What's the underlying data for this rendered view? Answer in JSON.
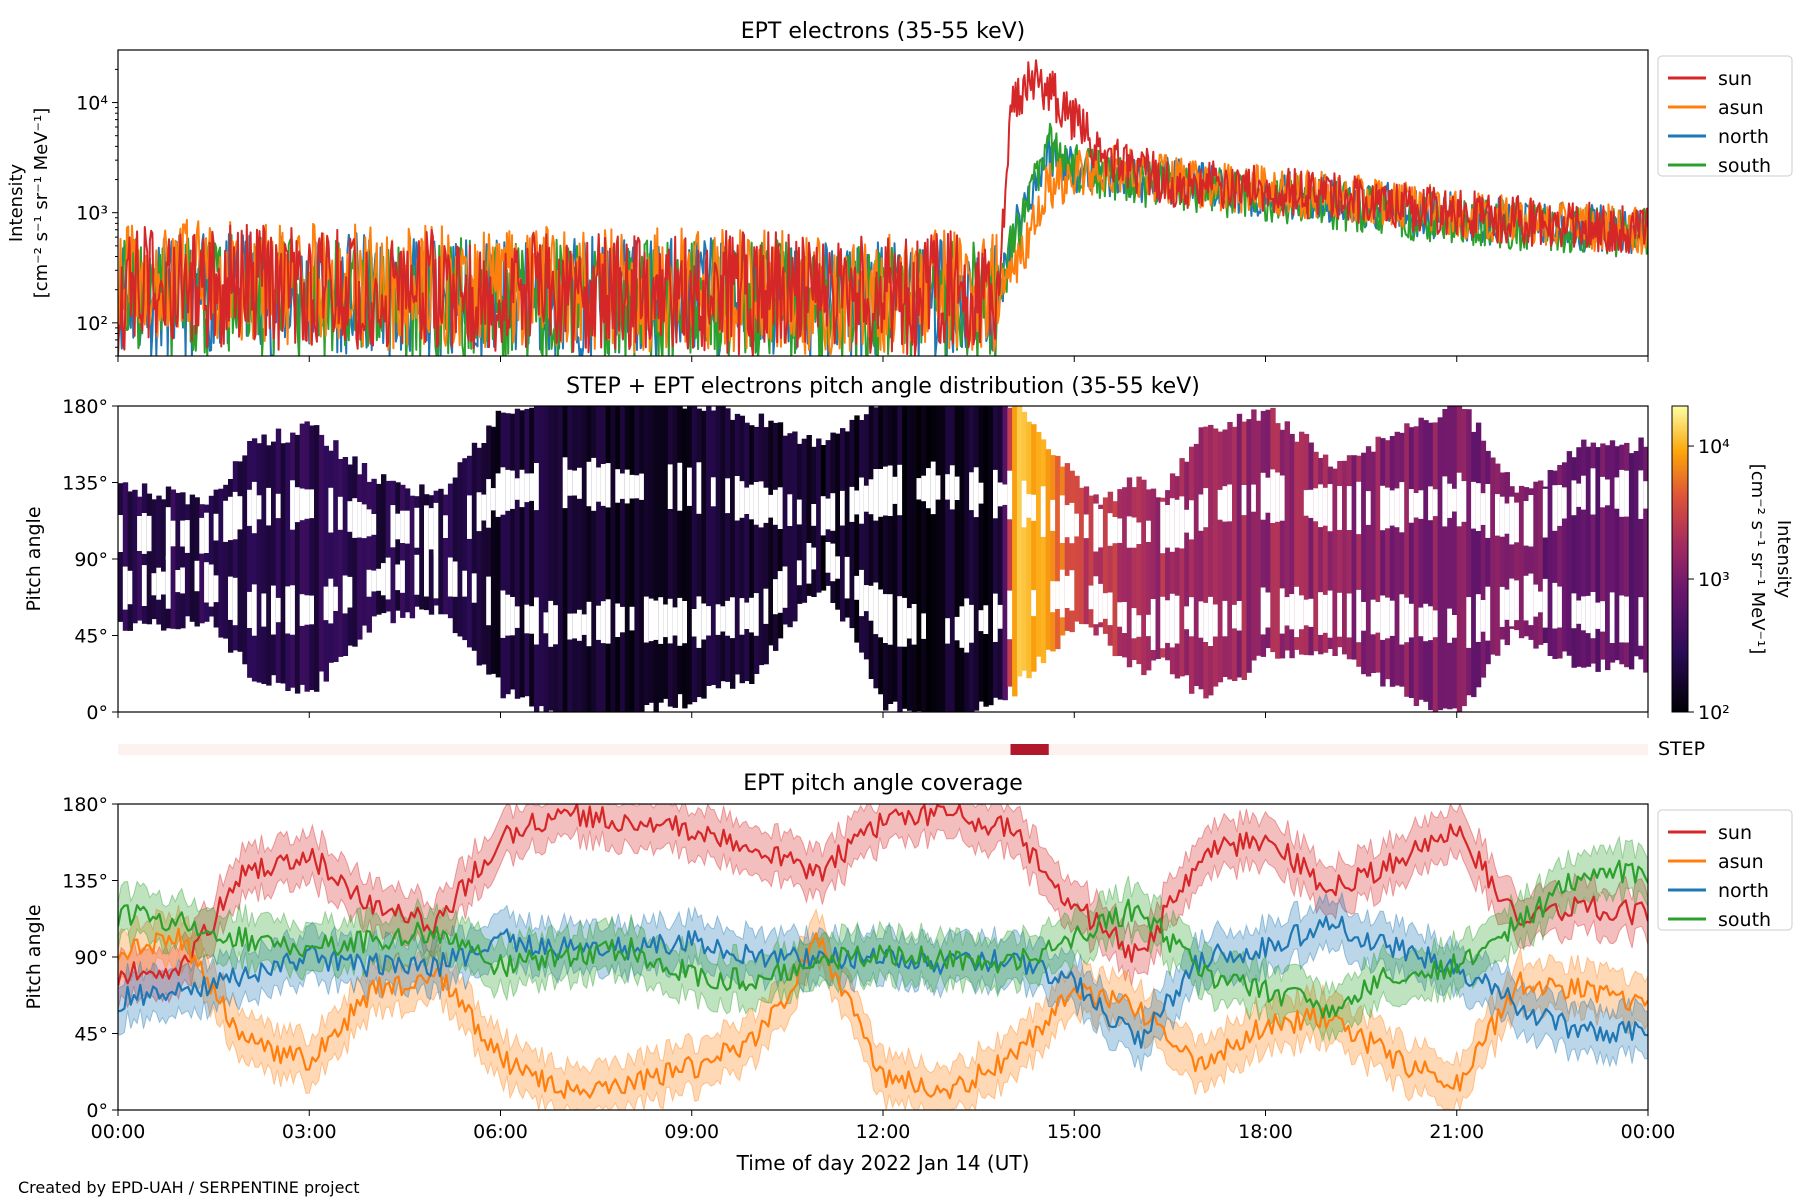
{
  "footer_text": "Created by EPD-UAH / SERPENTINE project",
  "colors": {
    "sun": "#d62728",
    "asun": "#ff7f0e",
    "north": "#1f77b4",
    "south": "#2ca02c",
    "step_on": "#b2182b",
    "step_off": "#fdf2ef"
  },
  "chart_data": [
    {
      "type": "line",
      "title": "EPT electrons (35-55 keV)",
      "ylabel_lines": [
        "Intensity",
        "[cm⁻² s⁻¹ sr⁻¹ MeV⁻¹]"
      ],
      "yscale": "log",
      "ylim": [
        50,
        30000
      ],
      "yticks": [
        {
          "v": 100,
          "label": "10²"
        },
        {
          "v": 1000,
          "label": "10³"
        },
        {
          "v": 10000,
          "label": "10⁴"
        }
      ],
      "xlim_hours": [
        0,
        24
      ],
      "legend": "top-right",
      "x_hours": [
        0,
        0.5,
        1,
        1.5,
        2,
        2.5,
        3,
        3.5,
        4,
        4.5,
        5,
        5.5,
        6,
        6.5,
        7,
        7.5,
        8,
        8.5,
        9,
        9.5,
        10,
        10.5,
        11,
        11.5,
        12,
        12.5,
        13,
        13.5,
        13.8,
        14,
        14.3,
        14.6,
        15,
        15.5,
        16,
        16.5,
        17,
        17.5,
        18,
        18.5,
        19,
        19.5,
        20,
        20.5,
        21,
        21.5,
        22,
        22.5,
        23,
        23.5,
        24
      ],
      "series": [
        {
          "name": "sun",
          "values": [
            200,
            220,
            190,
            210,
            230,
            200,
            210,
            220,
            200,
            190,
            210,
            200,
            190,
            210,
            200,
            190,
            180,
            190,
            200,
            190,
            180,
            190,
            170,
            180,
            170,
            180,
            190,
            180,
            170,
            9000,
            17000,
            13000,
            7000,
            3000,
            2500,
            1900,
            1800,
            1700,
            1600,
            1500,
            1400,
            1300,
            1200,
            1100,
            1000,
            900,
            850,
            800,
            750,
            720,
            700
          ]
        },
        {
          "name": "asun",
          "values": [
            210,
            230,
            250,
            240,
            230,
            210,
            220,
            230,
            210,
            200,
            220,
            210,
            200,
            210,
            220,
            200,
            190,
            200,
            210,
            200,
            190,
            200,
            180,
            190,
            180,
            190,
            200,
            190,
            180,
            300,
            600,
            1800,
            2200,
            2500,
            2200,
            2000,
            1800,
            1700,
            1600,
            1500,
            1400,
            1300,
            1200,
            1100,
            1000,
            900,
            850,
            800,
            750,
            720,
            700
          ]
        },
        {
          "name": "north",
          "values": [
            190,
            180,
            170,
            180,
            190,
            170,
            180,
            190,
            170,
            160,
            180,
            170,
            160,
            170,
            180,
            170,
            160,
            170,
            180,
            170,
            160,
            170,
            150,
            160,
            150,
            160,
            170,
            160,
            150,
            600,
            1500,
            3500,
            2500,
            2300,
            2000,
            1900,
            1700,
            1600,
            1500,
            1400,
            1300,
            1200,
            1100,
            1000,
            900,
            850,
            800,
            750,
            720,
            690,
            680
          ]
        },
        {
          "name": "south",
          "values": [
            180,
            170,
            160,
            170,
            180,
            160,
            170,
            180,
            160,
            150,
            170,
            160,
            150,
            160,
            170,
            160,
            150,
            160,
            170,
            160,
            150,
            160,
            140,
            150,
            140,
            150,
            160,
            150,
            140,
            450,
            1200,
            4000,
            2600,
            2200,
            1900,
            1800,
            1600,
            1500,
            1400,
            1300,
            1200,
            1100,
            1000,
            900,
            850,
            800,
            750,
            700,
            680,
            660,
            650
          ]
        }
      ]
    },
    {
      "type": "heatmap",
      "title": "STEP + EPT electrons pitch angle distribution (35-55 keV)",
      "ylabel": "Pitch angle",
      "ylim": [
        0,
        180
      ],
      "yticks": [
        {
          "v": 0,
          "label": "0°"
        },
        {
          "v": 45,
          "label": "45°"
        },
        {
          "v": 90,
          "label": "90°"
        },
        {
          "v": 135,
          "label": "135°"
        },
        {
          "v": 180,
          "label": "180°"
        }
      ],
      "colorbar": {
        "label_lines": [
          "Intensity",
          "[cm⁻² s⁻¹ sr⁻¹ MeV⁻¹]"
        ],
        "scale": "log",
        "range": [
          100,
          20000
        ],
        "ticks": [
          {
            "v": 100,
            "label": "10²"
          },
          {
            "v": 1000,
            "label": "10³"
          },
          {
            "v": 10000,
            "label": "10⁴"
          }
        ]
      },
      "x_hours": [
        0,
        1,
        2,
        3,
        4,
        5,
        6,
        7,
        8,
        9,
        10,
        11,
        12,
        13,
        13.8,
        14,
        14.5,
        15,
        16,
        17,
        18,
        19,
        20,
        21,
        22,
        23,
        24
      ],
      "intensity": [
        250,
        260,
        240,
        250,
        230,
        240,
        180,
        170,
        160,
        170,
        160,
        150,
        150,
        150,
        150,
        9000,
        12000,
        3000,
        1800,
        1600,
        1500,
        1400,
        1200,
        1000,
        900,
        800,
        700
      ]
    },
    {
      "type": "bar",
      "label": "STEP",
      "coverage_hours": [
        [
          14.0,
          14.6
        ]
      ]
    },
    {
      "type": "line",
      "title": "EPT pitch angle coverage",
      "ylabel": "Pitch angle",
      "xlabel": "Time of day 2022 Jan 14 (UT)",
      "ylim": [
        0,
        180
      ],
      "yticks": [
        {
          "v": 0,
          "label": "0°"
        },
        {
          "v": 45,
          "label": "45°"
        },
        {
          "v": 90,
          "label": "90°"
        },
        {
          "v": 135,
          "label": "135°"
        },
        {
          "v": 180,
          "label": "180°"
        }
      ],
      "xticks": [
        "00:00",
        "03:00",
        "06:00",
        "09:00",
        "12:00",
        "15:00",
        "18:00",
        "21:00",
        "00:00"
      ],
      "xlim_hours": [
        0,
        24
      ],
      "legend": "top-right",
      "x_hours": [
        0,
        1,
        2,
        3,
        4,
        5,
        6,
        7,
        8,
        9,
        10,
        11,
        12,
        13,
        14,
        15,
        16,
        17,
        18,
        19,
        20,
        21,
        22,
        23,
        24
      ],
      "series": [
        {
          "name": "sun",
          "values": [
            80,
            85,
            140,
            150,
            120,
            110,
            160,
            175,
            170,
            165,
            155,
            140,
            170,
            175,
            165,
            120,
            90,
            150,
            160,
            130,
            145,
            165,
            110,
            120,
            115
          ]
        },
        {
          "name": "asun",
          "values": [
            95,
            100,
            40,
            30,
            70,
            80,
            30,
            10,
            15,
            25,
            40,
            100,
            20,
            10,
            30,
            70,
            60,
            25,
            50,
            55,
            30,
            15,
            75,
            70,
            60
          ]
        },
        {
          "name": "north",
          "values": [
            65,
            70,
            80,
            90,
            85,
            85,
            100,
            95,
            95,
            100,
            90,
            90,
            90,
            85,
            90,
            75,
            40,
            90,
            95,
            110,
            95,
            85,
            60,
            45,
            45
          ]
        },
        {
          "name": "south",
          "values": [
            115,
            110,
            100,
            95,
            100,
            105,
            85,
            90,
            95,
            80,
            75,
            90,
            90,
            90,
            85,
            100,
            120,
            80,
            70,
            60,
            80,
            85,
            110,
            140,
            140
          ]
        }
      ]
    }
  ]
}
